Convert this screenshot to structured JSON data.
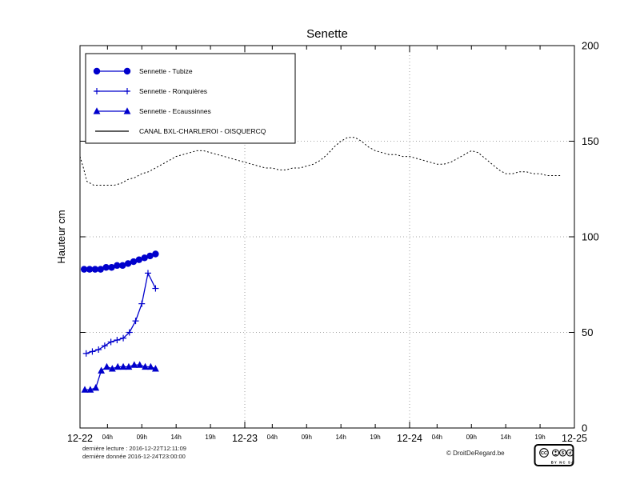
{
  "footer": {
    "last_reading": "dernière lecture : 2016-12-22T12:11:09",
    "last_data": "dernière donnée  2016-12-24T23:00:00",
    "copyright": "© DroitDeRegard.be",
    "license": {
      "logo": "CC",
      "labels_text": "BY NC SA"
    }
  },
  "chart_data": {
    "type": "line",
    "title": "Senette",
    "ylabel": "Hauteur cm",
    "ylim": [
      0,
      200
    ],
    "yticks": [
      0,
      50,
      100,
      150,
      200
    ],
    "x_hours_range": [
      0,
      72
    ],
    "day_ticks": [
      {
        "h": 0,
        "label": "12-22"
      },
      {
        "h": 24,
        "label": "12-23"
      },
      {
        "h": 48,
        "label": "12-24"
      },
      {
        "h": 72,
        "label": "12-25"
      }
    ],
    "hour_ticks": [
      {
        "h": 4,
        "label": "04h"
      },
      {
        "h": 9,
        "label": "09h"
      },
      {
        "h": 14,
        "label": "14h"
      },
      {
        "h": 19,
        "label": "19h"
      },
      {
        "h": 28,
        "label": "04h"
      },
      {
        "h": 33,
        "label": "09h"
      },
      {
        "h": 38,
        "label": "14h"
      },
      {
        "h": 43,
        "label": "19h"
      },
      {
        "h": 52,
        "label": "04h"
      },
      {
        "h": 57,
        "label": "09h"
      },
      {
        "h": 62,
        "label": "14h"
      },
      {
        "h": 67,
        "label": "19h"
      }
    ],
    "grid": {
      "h_lines": [
        50,
        100,
        150
      ],
      "v_lines_h": [
        24,
        48
      ]
    },
    "legend_position": "top-left",
    "series": [
      {
        "id": "tubize",
        "label": "Sennette - Tubize",
        "color": "#0000cc",
        "marker": "circle",
        "line": "solid",
        "x": [
          0.6,
          1.4,
          2.2,
          3.0,
          3.8,
          4.6,
          5.4,
          6.2,
          7.0,
          7.8,
          8.6,
          9.4,
          10.2,
          11.0
        ],
        "y": [
          83,
          83,
          83,
          83,
          84,
          84,
          85,
          85,
          86,
          87,
          88,
          89,
          90,
          91
        ]
      },
      {
        "id": "ronquieres",
        "label": "Sennette - Ronquières",
        "color": "#0000cc",
        "marker": "plus",
        "line": "solid",
        "x": [
          0.9,
          1.8,
          2.7,
          3.6,
          4.5,
          5.4,
          6.3,
          7.2,
          8.1,
          9.0,
          9.9,
          11.0
        ],
        "y": [
          39,
          40,
          41,
          43,
          45,
          46,
          47,
          50,
          56,
          65,
          81,
          73
        ]
      },
      {
        "id": "ecaussinnes",
        "label": "Sennette - Ecaussinnes",
        "color": "#0000cc",
        "marker": "triangle",
        "line": "solid",
        "x": [
          0.7,
          1.5,
          2.3,
          3.1,
          3.9,
          4.7,
          5.5,
          6.3,
          7.1,
          7.9,
          8.7,
          9.5,
          10.3,
          11.0
        ],
        "y": [
          20,
          20,
          21,
          30,
          32,
          31,
          32,
          32,
          32,
          33,
          33,
          32,
          32,
          31
        ]
      },
      {
        "id": "canal",
        "label": "CANAL BXL-CHARLEROI - OISQUERCQ",
        "color": "#000000",
        "marker": "none",
        "line": "dotted",
        "x": [
          0,
          0.5,
          1,
          2,
          3,
          4,
          5,
          6,
          7,
          8,
          9,
          10,
          11,
          12,
          13,
          14,
          15,
          16,
          17,
          18,
          19,
          20,
          21,
          22,
          23,
          24,
          25,
          26,
          27,
          28,
          29,
          30,
          31,
          32,
          33,
          34,
          35,
          36,
          37,
          38,
          39,
          40,
          41,
          42,
          43,
          44,
          45,
          46,
          47,
          48,
          49,
          50,
          51,
          52,
          53,
          54,
          55,
          56,
          57,
          58,
          59,
          60,
          61,
          62,
          63,
          64,
          65,
          66,
          67,
          68,
          69,
          70
        ],
        "y": [
          142,
          136,
          129,
          127,
          127,
          127,
          127,
          128,
          130,
          131,
          133,
          134,
          136,
          138,
          140,
          142,
          143,
          144,
          145,
          145,
          144,
          143,
          142,
          141,
          140,
          139,
          138,
          137,
          136,
          136,
          135,
          135,
          136,
          136,
          137,
          138,
          140,
          143,
          147,
          150,
          152,
          152,
          150,
          147,
          145,
          144,
          143,
          143,
          142,
          142,
          141,
          140,
          139,
          138,
          138,
          139,
          141,
          143,
          145,
          144,
          141,
          138,
          135,
          133,
          133,
          134,
          134,
          133,
          133,
          132,
          132,
          132
        ]
      }
    ]
  }
}
